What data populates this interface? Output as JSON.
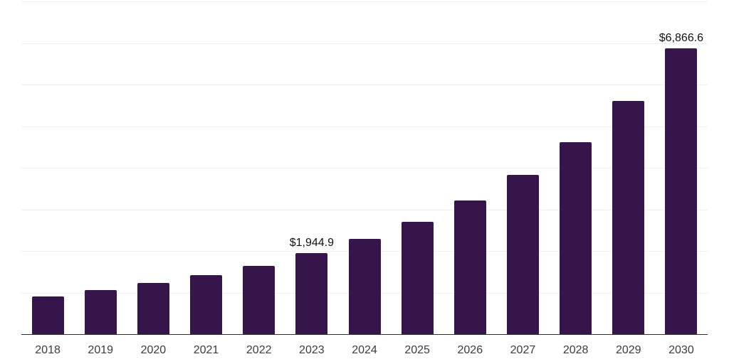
{
  "chart_data": {
    "type": "bar",
    "title": "",
    "xlabel": "",
    "ylabel": "",
    "categories": [
      "2018",
      "2019",
      "2020",
      "2021",
      "2022",
      "2023",
      "2024",
      "2025",
      "2026",
      "2027",
      "2028",
      "2029",
      "2030"
    ],
    "values": [
      910,
      1055,
      1225,
      1415,
      1645,
      1944.9,
      2290,
      2705,
      3220,
      3830,
      4615,
      5600,
      6866.6
    ],
    "data_labels": [
      "",
      "",
      "",
      "",
      "",
      "$1,944.9",
      "",
      "",
      "",
      "",
      "",
      "",
      "$6,866.6"
    ],
    "ylim": [
      0,
      8000
    ],
    "gridline_step": 1000,
    "grid": "horizontal-only",
    "legend": "none",
    "colors": {
      "bar": "#36154b",
      "axis_line": "#333333",
      "gridline": "#efefef",
      "data_label_text": "#111111",
      "tick_label_text": "#3c3c3c",
      "background": "#ffffff"
    }
  }
}
